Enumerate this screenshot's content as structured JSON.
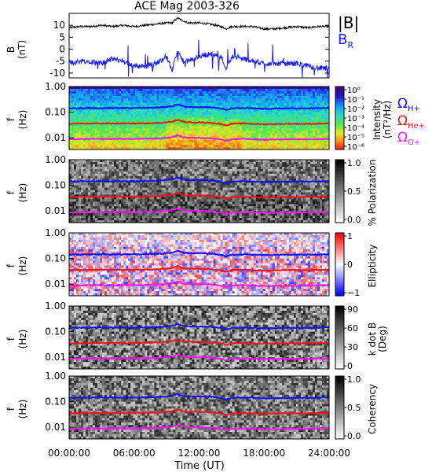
{
  "figure": {
    "title": "ACE Mag 2003-326"
  },
  "colors": {
    "B_total": "#000000",
    "B_R": "#1a1aff",
    "H": "#1010ff",
    "He": "#ff1010",
    "O": "#ff10ff"
  },
  "chart_data": [
    {
      "type": "line",
      "panel": "field",
      "ylabel": "B",
      "yunit": "(nT)",
      "ylim": [
        -12,
        15
      ],
      "yticks": [
        "10",
        "5",
        "0",
        "-5",
        "-10"
      ],
      "ytick_values": [
        10,
        5,
        0,
        -5,
        -10
      ],
      "xlim_hours": [
        0,
        24
      ],
      "legend": [
        {
          "label": "|B|",
          "color": "#000000"
        },
        {
          "label": "B",
          "sub": "R",
          "color": "#1a1aff"
        }
      ],
      "series": [
        {
          "name": "|B|",
          "x_hours": [
            0,
            1,
            2,
            3,
            4,
            5,
            6,
            7,
            8,
            9,
            9.5,
            10,
            10.5,
            11,
            11.5,
            12,
            13,
            14,
            14.5,
            15,
            16,
            17,
            18,
            19,
            20,
            21,
            22,
            23,
            24
          ],
          "values": [
            9,
            9.5,
            9.5,
            10,
            9.5,
            10,
            9.5,
            10,
            10.5,
            11,
            11,
            13,
            12,
            11,
            11,
            11,
            10.5,
            9.5,
            8.5,
            9.5,
            9.5,
            9.5,
            8.5,
            8.5,
            9,
            9.5,
            9,
            9.5,
            9.5
          ]
        },
        {
          "name": "B_R",
          "x_hours": [
            0,
            1,
            2,
            3,
            4,
            5,
            6,
            7,
            8,
            9,
            9.5,
            10,
            10.5,
            11,
            11.5,
            12,
            13,
            14,
            14.5,
            15,
            16,
            17,
            18,
            19,
            20,
            21,
            22,
            23,
            24
          ],
          "values": [
            -6,
            -5,
            -5,
            -6,
            -4,
            -5,
            -7,
            -7,
            -6,
            -3,
            -9,
            -1,
            -5,
            -5,
            -4,
            -3,
            -2,
            -3,
            -8,
            -3,
            -4,
            -5,
            -6,
            -6,
            -6,
            -6,
            -7,
            -8,
            -8
          ]
        }
      ]
    },
    {
      "type": "heatmap",
      "panel": "intensity",
      "ylabel": "f",
      "yunit": "(Hz)",
      "yticks": [
        "1.00",
        "0.10",
        "0.01"
      ],
      "colorbar_label": "Intensity",
      "colorbar_unit": "(nT²/Hz)",
      "colorbar_ticks": [
        "10⁰",
        "10⁻¹",
        "10⁻²",
        "10⁻³",
        "10⁻⁴",
        "10⁻⁵",
        "10⁻⁶"
      ],
      "gyro_legend": [
        {
          "label": "Ω",
          "sub": "H+",
          "color": "#1010ff"
        },
        {
          "label": "Ω",
          "sub": "He+",
          "color": "#ff1010"
        },
        {
          "label": "Ω",
          "sub": "O+",
          "color": "#ff10ff"
        }
      ]
    },
    {
      "type": "heatmap",
      "panel": "polarization",
      "ylabel": "f",
      "yunit": "(Hz)",
      "yticks": [
        "1.00",
        "0.10",
        "0.01"
      ],
      "colorbar_label": "% Polarization",
      "colorbar_ticks": [
        "1.0",
        "0.5",
        "0.0"
      ]
    },
    {
      "type": "heatmap",
      "panel": "ellipticity",
      "ylabel": "f",
      "yunit": "(Hz)",
      "yticks": [
        "1.00",
        "0.10",
        "0.01"
      ],
      "colorbar_label": "Ellipticity",
      "colorbar_ticks": [
        "1",
        "0",
        "−1"
      ]
    },
    {
      "type": "heatmap",
      "panel": "kdotb",
      "ylabel": "f",
      "yunit": "(Hz)",
      "yticks": [
        "1.00",
        "0.10",
        "0.01"
      ],
      "colorbar_label": "k dot B",
      "colorbar_unit": "(Deg)",
      "colorbar_ticks": [
        "90",
        "60",
        "30",
        "0"
      ]
    },
    {
      "type": "heatmap",
      "panel": "coherency",
      "ylabel": "f",
      "yunit": "(Hz)",
      "yticks": [
        "1.00",
        "0.10",
        "0.01"
      ],
      "colorbar_label": "Coherency",
      "colorbar_ticks": [
        "1.0",
        "0.5",
        "0.0"
      ],
      "xlabel": "Time (UT)",
      "xticks": [
        "00:00:00",
        "06:00:00",
        "12:00:00",
        "18:00:00",
        "24:00:00"
      ],
      "xtick_hours": [
        0,
        6,
        12,
        18,
        24
      ]
    }
  ],
  "gyrofrequencies": {
    "x_hours": [
      0,
      2,
      4,
      6,
      8,
      9,
      9.5,
      10,
      10.5,
      11,
      12,
      13,
      14,
      14.5,
      15,
      16,
      18,
      20,
      22,
      24
    ],
    "H_hz": [
      0.14,
      0.145,
      0.145,
      0.145,
      0.15,
      0.16,
      0.17,
      0.2,
      0.17,
      0.16,
      0.16,
      0.155,
      0.14,
      0.12,
      0.14,
      0.145,
      0.135,
      0.14,
      0.14,
      0.145
    ]
  }
}
